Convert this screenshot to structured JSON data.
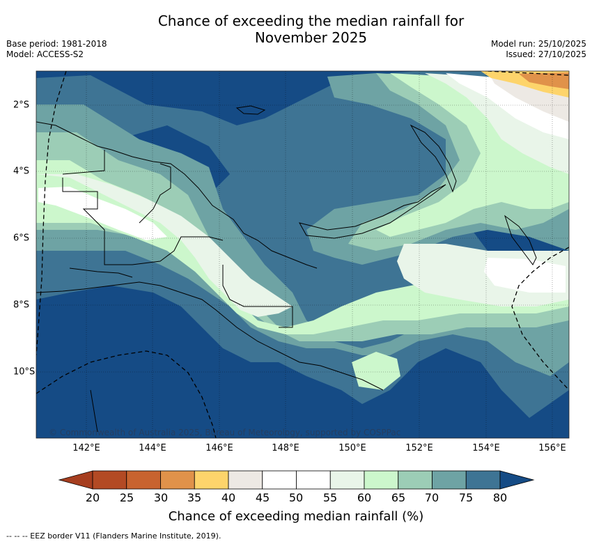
{
  "title": {
    "line1": "Chance of exceeding the median rainfall for",
    "line2": "November 2025"
  },
  "meta": {
    "base_period": "Base period: 1981-2018",
    "model": "Model: ACCESS-S2",
    "model_run": "Model run: 25/10/2025",
    "issued": "Issued: 27/10/2025"
  },
  "map": {
    "region": "Papua New Guinea and surrounding ocean",
    "lon_range": [
      140.6,
      156.6
    ],
    "lat_range": [
      -1.0,
      -12.0
    ],
    "x_ticks": [
      "142°E",
      "144°E",
      "146°E",
      "148°E",
      "150°E",
      "152°E",
      "154°E",
      "156°E"
    ],
    "y_ticks": [
      "2°S",
      "4°S",
      "6°S",
      "8°S",
      "10°S"
    ],
    "copyright": "© Commonwealth of Australia 2025, Bureau of Meteorology, supported by COSPPac"
  },
  "colorbar": {
    "levels": [
      "20",
      "25",
      "30",
      "35",
      "40",
      "45",
      "50",
      "55",
      "60",
      "65",
      "70",
      "75",
      "80"
    ],
    "colors": [
      "#b34a24",
      "#c8632f",
      "#e0924a",
      "#fdd46b",
      "#ede9e4",
      "#ffffff",
      "#ffffff",
      "#e9f5e9",
      "#ccf7cc",
      "#9ccdb6",
      "#6ea3a4",
      "#3e7494"
    ],
    "under_color": "#a63e1f",
    "over_color": "#154b85",
    "label": "Chance of exceeding median rainfall (%)"
  },
  "footnote": "-- -- -- EEZ border V11 (Flanders Marine Institute, 2019)."
}
